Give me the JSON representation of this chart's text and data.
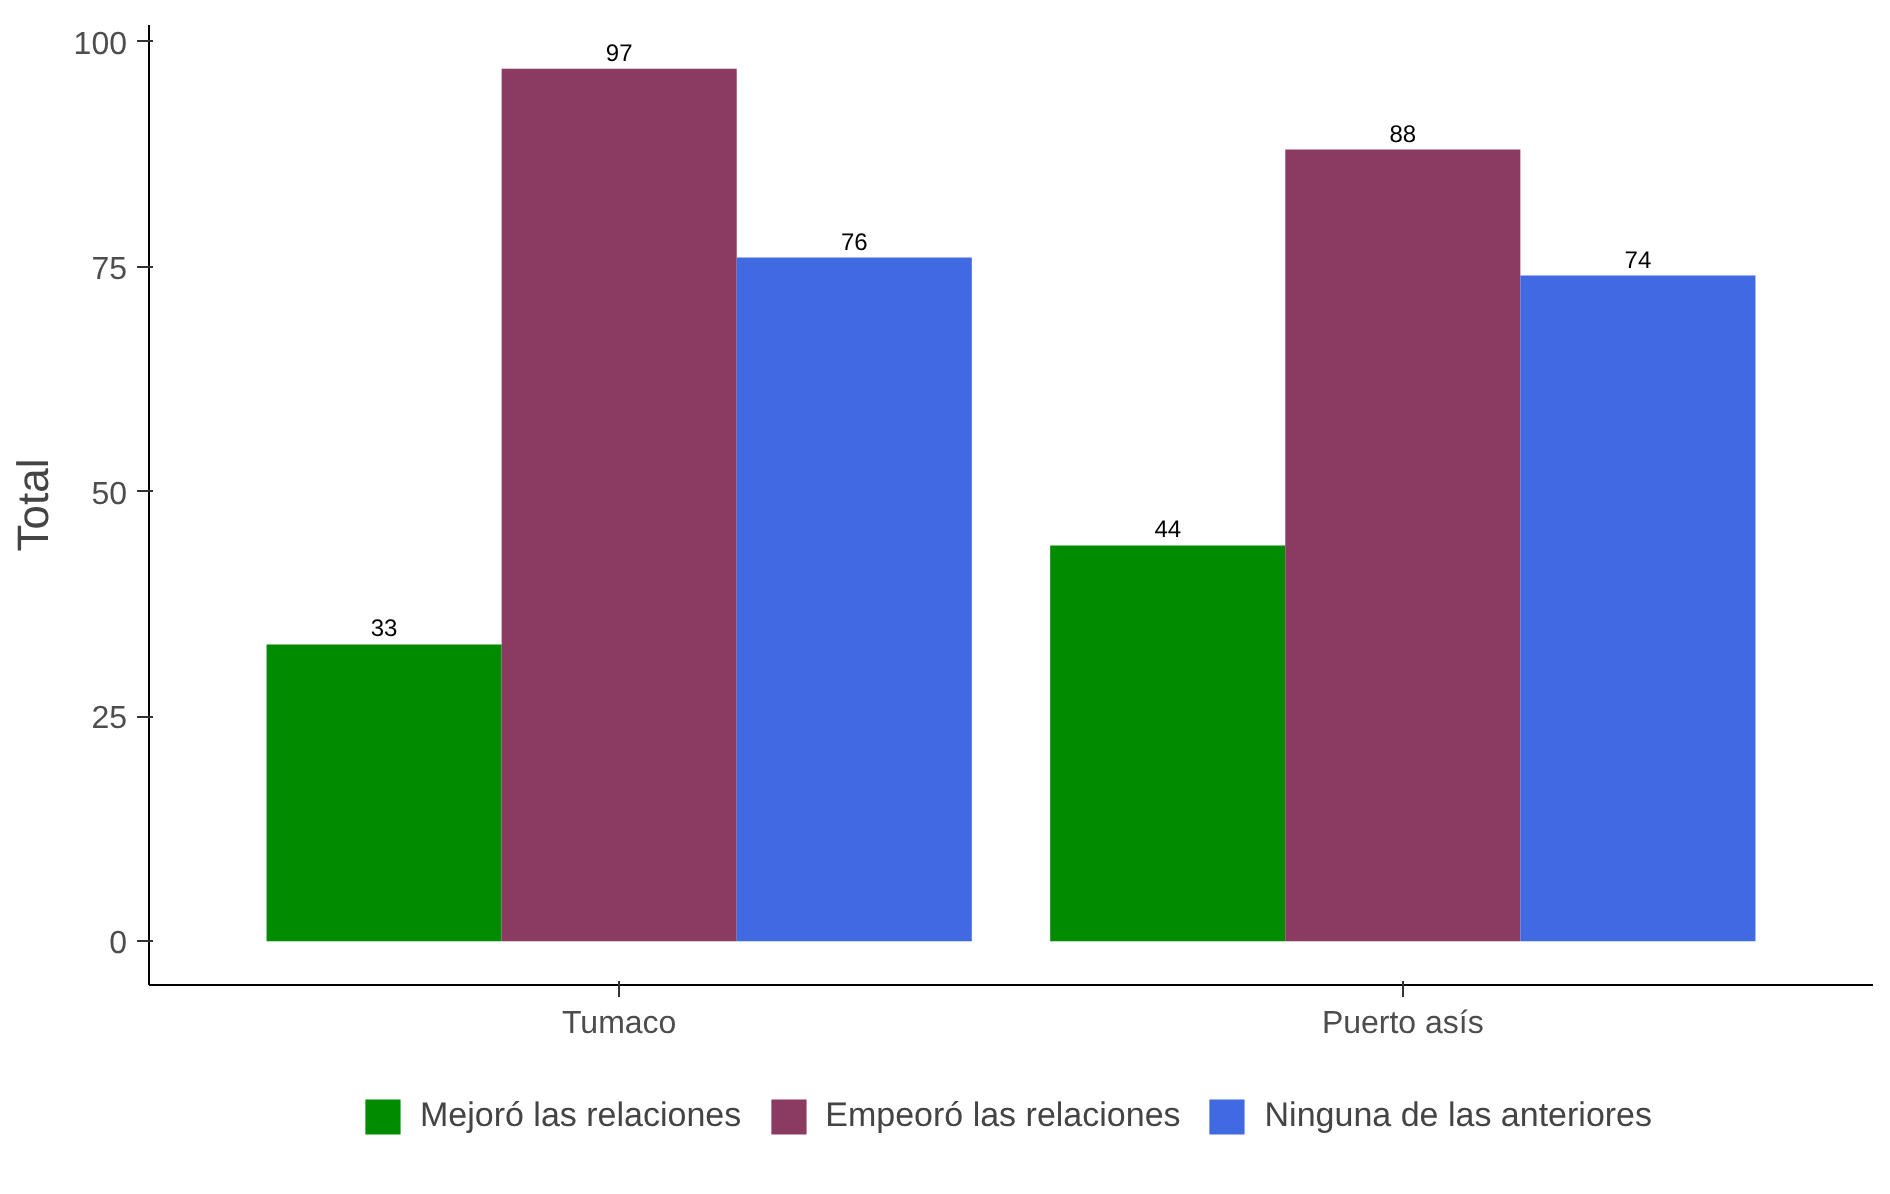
{
  "chart_data": {
    "type": "bar",
    "ylabel": "Total",
    "categories": [
      "Tumaco",
      "Puerto asís"
    ],
    "series": [
      {
        "name": "Mejoró las relaciones",
        "color": "#008b00",
        "values": [
          33,
          44
        ]
      },
      {
        "name": "Empeoró las relaciones",
        "color": "#8b3a62",
        "values": [
          97,
          88
        ]
      },
      {
        "name": "Ninguna de las anteriores",
        "color": "#4169e1",
        "values": [
          76,
          74
        ]
      }
    ],
    "ylim": [
      -4.85,
      101.85
    ],
    "yticks": [
      0,
      25,
      50,
      75,
      100
    ],
    "grid": false,
    "legend": "bottom",
    "data_labels": true
  }
}
